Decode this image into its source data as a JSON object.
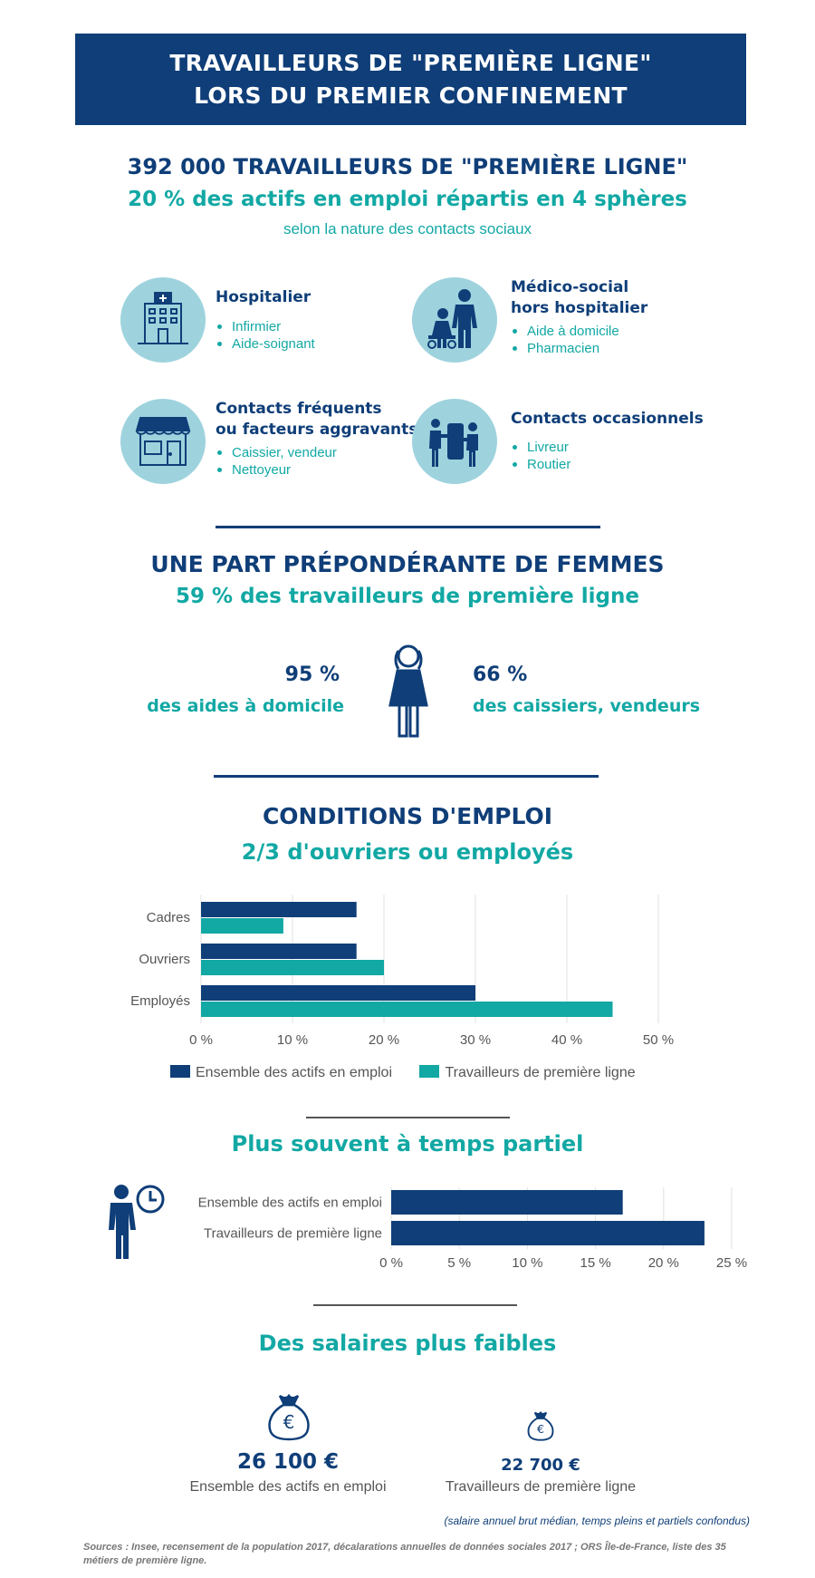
{
  "banner": {
    "line1": "TRAVAILLEURS DE \"PREMIÈRE LIGNE\"",
    "line2": "LORS DU PREMIER CONFINEMENT"
  },
  "intro": {
    "headline": "392 000 TRAVAILLEURS DE \"PREMIÈRE LIGNE\"",
    "subheadline": "20 % des actifs en emploi répartis en 4 sphères",
    "caption": "selon la nature des contacts sociaux"
  },
  "spheres": [
    {
      "title_lines": [
        "Hospitalier"
      ],
      "items": [
        "Infirmier",
        "Aide-soignant"
      ],
      "icon": "hospital-icon"
    },
    {
      "title_lines": [
        "Médico-social",
        "hors hospitalier"
      ],
      "items": [
        "Aide à domicile",
        "Pharmacien"
      ],
      "icon": "caregiver-icon"
    },
    {
      "title_lines": [
        "Contacts fréquents",
        "ou facteurs aggravants"
      ],
      "items": [
        "Caissier, vendeur",
        "Nettoyeur"
      ],
      "icon": "shop-icon"
    },
    {
      "title_lines": [
        "Contacts occasionnels"
      ],
      "items": [
        "Livreur",
        "Routier"
      ],
      "icon": "delivery-icon"
    }
  ],
  "women": {
    "title": "UNE PART PRÉPONDÉRANTE DE FEMMES",
    "subtitle": "59 % des travailleurs de première ligne",
    "left": {
      "value": "95 %",
      "label": "des aides à domicile"
    },
    "right": {
      "value": "66 %",
      "label": "des caissiers, vendeurs"
    },
    "icon": "woman-icon"
  },
  "employment": {
    "title": "CONDITIONS D'EMPLOI",
    "subtitle": "2/3 d'ouvriers ou employés"
  },
  "part_time": {
    "title": "Plus souvent à temps partiel",
    "icon": "person-clock-icon"
  },
  "salaries": {
    "title": "Des salaires plus faibles",
    "items": [
      {
        "value": "26 100 €",
        "label": "Ensemble des actifs en emploi",
        "icon": "money-bag-icon"
      },
      {
        "value": "22 700 €",
        "label": "Travailleurs de première ligne",
        "icon": "money-bag-icon"
      }
    ],
    "note": "(salaire annuel brut médian, temps pleins et partiels confondus)"
  },
  "sources": "Sources : Insee, recensement de la population 2017, décalarations annuelles de données sociales 2017 ; ORS Île-de-France, liste des 35 métiers de première ligne.",
  "colors": {
    "navy": "#0f3e78",
    "teal": "#12a8a4",
    "light_blue": "#9ed3de"
  },
  "chart_data": [
    {
      "type": "bar",
      "orientation": "horizontal",
      "categories": [
        "Cadres",
        "Ouvriers",
        "Employés"
      ],
      "series": [
        {
          "name": "Ensemble des actifs en emploi",
          "values": [
            17,
            17,
            30
          ],
          "color": "#0f3e78"
        },
        {
          "name": "Travailleurs de première ligne",
          "values": [
            9,
            20,
            45
          ],
          "color": "#12a8a4"
        }
      ],
      "x_ticks": [
        "0 %",
        "10 %",
        "20 %",
        "30 %",
        "40 %",
        "50 %"
      ],
      "xlim": [
        0,
        50
      ],
      "grid": true,
      "legend": "bottom"
    },
    {
      "type": "bar",
      "orientation": "horizontal",
      "categories": [
        "Ensemble des actifs en emploi",
        "Travailleurs de première ligne"
      ],
      "values": [
        17,
        23
      ],
      "color": "#0f3e78",
      "x_ticks": [
        "0 %",
        "5 %",
        "10 %",
        "15 %",
        "20 %",
        "25 %"
      ],
      "xlim": [
        0,
        25
      ],
      "grid": true
    }
  ]
}
